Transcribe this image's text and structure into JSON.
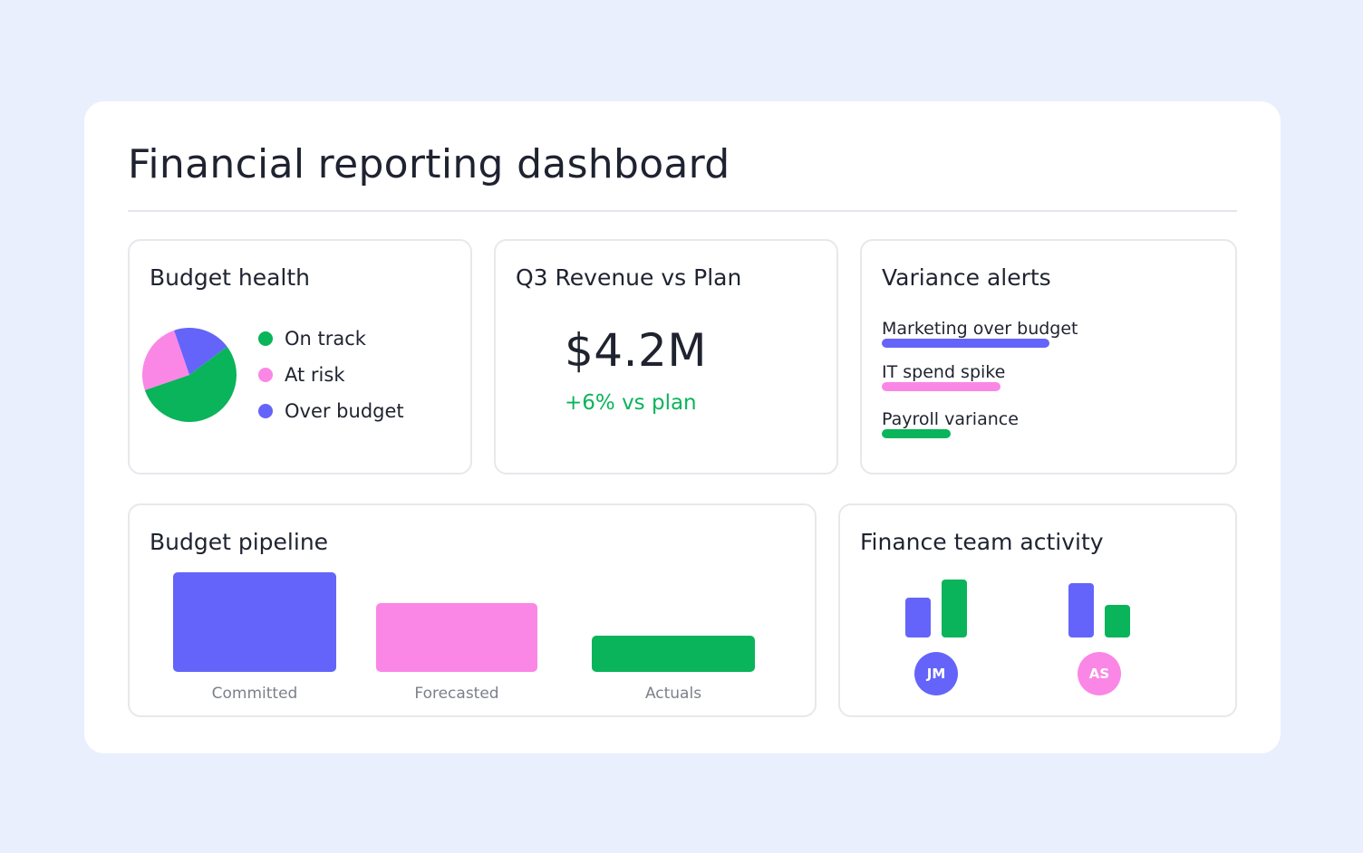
{
  "page": {
    "title": "Financial reporting dashboard"
  },
  "budget_health": {
    "title": "Budget health",
    "legend": [
      {
        "label": "On track",
        "color": "#0ab45a"
      },
      {
        "label": "At risk",
        "color": "#fa87e6"
      },
      {
        "label": "Over budget",
        "color": "#6464fa"
      }
    ],
    "pie_shares": {
      "on_track": 0.55,
      "at_risk": 0.25,
      "over_budget": 0.2
    }
  },
  "revenue": {
    "title": "Q3 Revenue vs Plan",
    "value": "$4.2M",
    "delta": "+6% vs plan",
    "delta_color": "#0ab45a"
  },
  "variance_alerts": {
    "title": "Variance alerts",
    "items": [
      {
        "label": "Marketing over budget",
        "color": "#6464fa",
        "level": 0.68
      },
      {
        "label": "IT spend spike",
        "color": "#fa87e6",
        "level": 0.48
      },
      {
        "label": "Payroll variance",
        "color": "#0ab45a",
        "level": 0.28
      }
    ]
  },
  "budget_pipeline": {
    "title": "Budget pipeline",
    "stages": [
      {
        "label": "Committed",
        "color": "#6464fa",
        "level": 1.0
      },
      {
        "label": "Forecasted",
        "color": "#fa87e6",
        "level": 0.69
      },
      {
        "label": "Actuals",
        "color": "#0ab45a",
        "level": 0.36
      }
    ]
  },
  "finance_team_activity": {
    "title": "Finance team activity",
    "members": [
      {
        "initials": "JM",
        "color": "#6464fa",
        "activity": [
          0.69,
          1.0
        ]
      },
      {
        "initials": "AS",
        "color": "#fa87e6",
        "activity": [
          0.94,
          0.56
        ]
      }
    ],
    "bar_colors": [
      "#6464fa",
      "#0ab45a"
    ]
  }
}
